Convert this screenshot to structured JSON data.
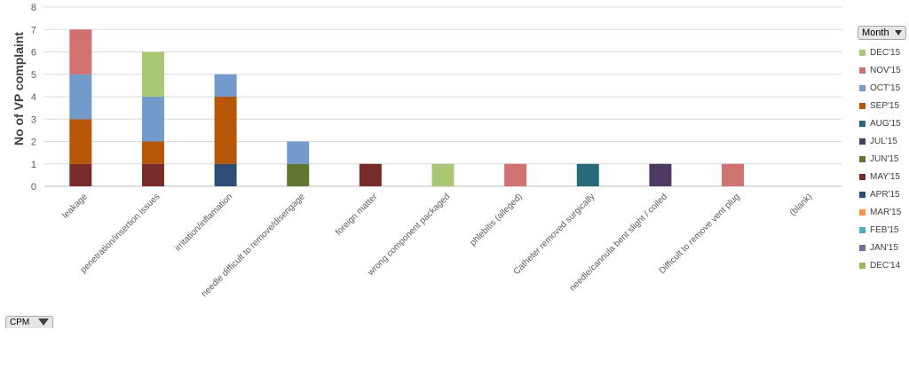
{
  "chart_data": {
    "type": "bar",
    "stacked": true,
    "ylabel": "No of VP complaint",
    "ylim": [
      0,
      8
    ],
    "yticks": [
      0,
      1,
      2,
      3,
      4,
      5,
      6,
      7,
      8
    ],
    "grid": true,
    "legend_position": "right",
    "legend_title": "Month",
    "categories": [
      "leakage",
      "penetration/insertion issues",
      "irritation/inflamation",
      "needle difficult to remove/disengage",
      "foreign matter",
      "wrong component packaged",
      "phlebitis (alleged)",
      "Catheter removed surgically",
      "needle/cannula bent slight / coiled",
      "Difficult to remove vent plug",
      "(blank)"
    ],
    "series": [
      {
        "name": "DEC'14",
        "color": "#9bbb59",
        "values": [
          0,
          0,
          0,
          0,
          0,
          0,
          0,
          0,
          0,
          0,
          0
        ]
      },
      {
        "name": "JAN'15",
        "color": "#8064a2",
        "values": [
          0,
          0,
          0,
          0,
          0,
          0,
          0,
          0,
          0,
          0,
          0
        ]
      },
      {
        "name": "FEB'15",
        "color": "#4bacc6",
        "values": [
          0,
          0,
          0,
          0,
          0,
          0,
          0,
          0,
          0,
          0,
          0
        ]
      },
      {
        "name": "MAR'15",
        "color": "#f79646",
        "values": [
          0,
          0,
          0,
          0,
          0,
          0,
          0,
          0,
          0,
          0,
          0
        ]
      },
      {
        "name": "APR'15",
        "color": "#2c4d75",
        "values": [
          0,
          0,
          1,
          0,
          0,
          0,
          0,
          0,
          0,
          0,
          0
        ]
      },
      {
        "name": "MAY'15",
        "color": "#772c2a",
        "values": [
          1,
          1,
          0,
          0,
          1,
          0,
          0,
          0,
          0,
          0,
          0
        ]
      },
      {
        "name": "JUN'15",
        "color": "#5f7530",
        "values": [
          0,
          0,
          0,
          1,
          0,
          0,
          0,
          0,
          0,
          0,
          0
        ]
      },
      {
        "name": "JUL'15",
        "color": "#4d3b62",
        "values": [
          0,
          0,
          0,
          0,
          0,
          0,
          0,
          0,
          1,
          0,
          0
        ]
      },
      {
        "name": "AUG'15",
        "color": "#276a7c",
        "values": [
          0,
          0,
          0,
          0,
          0,
          0,
          0,
          1,
          0,
          0,
          0
        ]
      },
      {
        "name": "SEP'15",
        "color": "#b65708",
        "values": [
          2,
          1,
          3,
          0,
          0,
          0,
          0,
          0,
          0,
          0,
          0
        ]
      },
      {
        "name": "OCT'15",
        "color": "#729aca",
        "values": [
          2,
          2,
          1,
          1,
          0,
          0,
          0,
          0,
          0,
          0,
          0
        ]
      },
      {
        "name": "NOV'15",
        "color": "#d07370",
        "values": [
          2,
          0,
          0,
          0,
          0,
          0,
          1,
          0,
          0,
          1,
          0
        ]
      },
      {
        "name": "DEC'15",
        "color": "#aac775",
        "values": [
          0,
          2,
          0,
          0,
          0,
          1,
          0,
          0,
          0,
          0,
          0
        ]
      }
    ],
    "legend_order": [
      "DEC'15",
      "NOV'15",
      "OCT'15",
      "SEP'15",
      "AUG'15",
      "JUL'15",
      "JUN'15",
      "MAY'15",
      "APR'15",
      "MAR'15",
      "FEB'15",
      "JAN'15",
      "DEC'14"
    ]
  },
  "filter_button": {
    "label": "CPM"
  }
}
